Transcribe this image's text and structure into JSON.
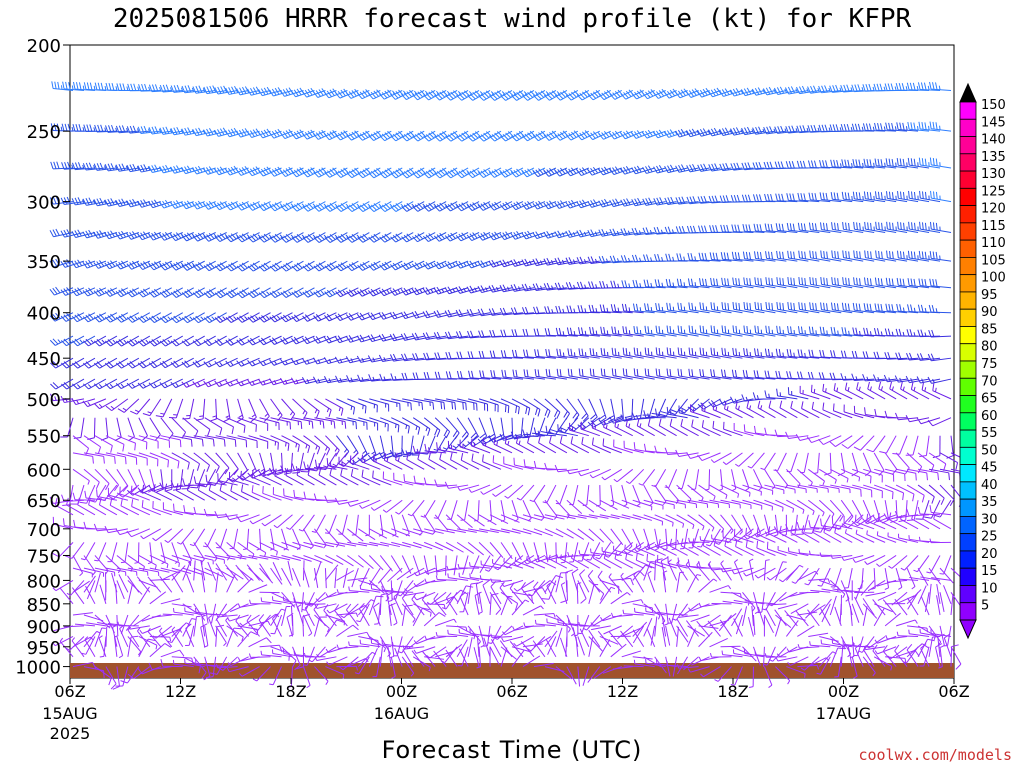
{
  "chart_data": {
    "type": "wind-barb-profile",
    "title": "2025081506 HRRR forecast wind profile (kt) for KFPR",
    "xlabel": "Forecast Time (UTC)",
    "ylabel": "",
    "y_scale": "log-pressure",
    "ylim": [
      1030,
      200
    ],
    "y_ticks": [
      "200",
      "250",
      "300",
      "350",
      "400",
      "450",
      "500",
      "550",
      "600",
      "650",
      "700",
      "750",
      "800",
      "850",
      "900",
      "950",
      "1000"
    ],
    "x_ticks": [
      {
        "label": "06Z",
        "sub": "15AUG",
        "sub2": "2025"
      },
      {
        "label": "12Z",
        "sub": "",
        "sub2": ""
      },
      {
        "label": "18Z",
        "sub": "",
        "sub2": ""
      },
      {
        "label": "00Z",
        "sub": "16AUG",
        "sub2": ""
      },
      {
        "label": "06Z",
        "sub": "",
        "sub2": ""
      },
      {
        "label": "12Z",
        "sub": "",
        "sub2": ""
      },
      {
        "label": "18Z",
        "sub": "",
        "sub2": ""
      },
      {
        "label": "00Z",
        "sub": "17AUG",
        "sub2": ""
      },
      {
        "label": "06Z",
        "sub": "",
        "sub2": ""
      }
    ],
    "forecast_hours": [
      0,
      48
    ],
    "colorbar": {
      "labels": [
        "150",
        "145",
        "140",
        "135",
        "130",
        "125",
        "120",
        "115",
        "110",
        "105",
        "100",
        "95",
        "90",
        "85",
        "80",
        "75",
        "70",
        "65",
        "60",
        "55",
        "50",
        "45",
        "40",
        "35",
        "30",
        "25",
        "20",
        "15",
        "10",
        "5"
      ],
      "colors": [
        "#ff00ff",
        "#ff00c8",
        "#ff0096",
        "#ff0064",
        "#ff0032",
        "#ff0000",
        "#ff2000",
        "#ff4000",
        "#ff6000",
        "#ff8000",
        "#ff9a00",
        "#ffb400",
        "#ffd000",
        "#ffff00",
        "#d8ff00",
        "#a0ff00",
        "#60ff00",
        "#20ff20",
        "#00ff60",
        "#00ffa0",
        "#00ffd0",
        "#00e8ff",
        "#00c0ff",
        "#0096ff",
        "#0064ff",
        "#0040ff",
        "#0020ff",
        "#2000ff",
        "#6000ff",
        "#9000ff"
      ]
    },
    "barb_color_note": "Barbs are colored by wind speed using the colorbar.",
    "ground_color": "#a0522d"
  },
  "watermark": "coolwx.com/models"
}
